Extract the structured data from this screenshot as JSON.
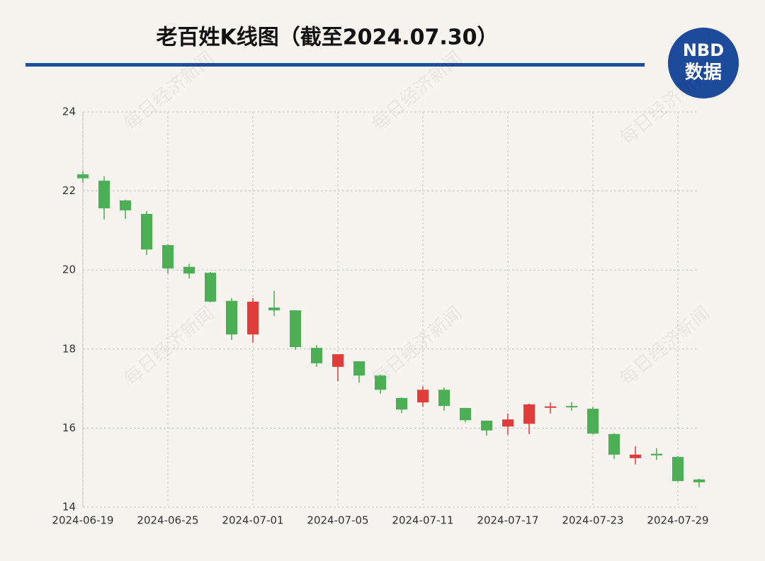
{
  "chart_data": {
    "type": "candlestick",
    "title": "老百姓K线图（截至2024.07.30）",
    "categories": [
      "2024-06-19",
      null,
      null,
      null,
      "2024-06-25",
      null,
      null,
      null,
      "2024-07-01",
      null,
      null,
      null,
      "2024-07-05",
      null,
      null,
      null,
      "2024-07-11",
      null,
      null,
      null,
      "2024-07-17",
      null,
      null,
      null,
      "2024-07-23",
      null,
      null,
      null,
      "2024-07-29",
      null
    ],
    "open": [
      22.42,
      22.26,
      21.76,
      21.42,
      20.63,
      20.08,
      19.93,
      19.22,
      18.37,
      19.05,
      18.98,
      18.03,
      17.55,
      17.69,
      17.33,
      16.76,
      16.65,
      16.97,
      16.51,
      16.19,
      16.04,
      16.11,
      16.52,
      16.56,
      16.49,
      15.85,
      15.24,
      15.35,
      15.27,
      14.7
    ],
    "high": [
      22.5,
      22.37,
      21.78,
      21.49,
      20.65,
      20.16,
      19.95,
      19.29,
      19.29,
      19.47,
      18.98,
      18.1,
      17.87,
      17.69,
      17.35,
      16.78,
      17.06,
      17.03,
      16.51,
      16.19,
      16.37,
      16.62,
      16.65,
      16.66,
      16.53,
      15.87,
      15.54,
      15.49,
      15.29,
      14.72
    ],
    "low": [
      22.21,
      21.28,
      21.29,
      20.38,
      19.91,
      19.79,
      19.18,
      18.23,
      18.16,
      18.84,
      17.98,
      17.55,
      17.19,
      17.15,
      16.87,
      16.38,
      16.54,
      16.44,
      16.15,
      15.81,
      15.83,
      15.85,
      16.37,
      16.44,
      15.84,
      15.22,
      15.08,
      15.2,
      14.64,
      14.5
    ],
    "close": [
      22.32,
      21.56,
      21.51,
      20.52,
      20.04,
      19.91,
      19.2,
      18.37,
      19.2,
      18.98,
      18.05,
      17.64,
      17.87,
      17.33,
      16.97,
      16.47,
      16.97,
      16.56,
      16.2,
      15.94,
      16.22,
      16.6,
      16.55,
      16.53,
      15.86,
      15.33,
      15.33,
      15.31,
      14.66,
      14.63
    ],
    "up_color": "#e03c3a",
    "down_color": "#4cae55",
    "ylim": [
      14,
      24
    ],
    "yticks": [
      14,
      16,
      18,
      20,
      22,
      24
    ],
    "grid": true
  },
  "logo": {
    "line1": "NBD",
    "line2": "数据"
  },
  "watermark": "每日经济新闻"
}
